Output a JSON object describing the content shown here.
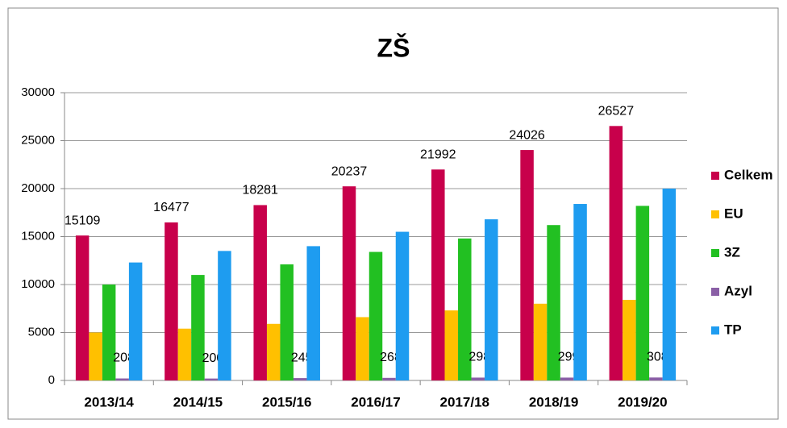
{
  "chart_data": {
    "type": "bar",
    "title": "ZŠ",
    "categories": [
      "2013/14",
      "2014/15",
      "2015/16",
      "2016/17",
      "2017/18",
      "2018/19",
      "2019/20"
    ],
    "series": [
      {
        "name": "Celkem",
        "color": "#c8004b",
        "data_labels": true,
        "values": [
          15109,
          16477,
          18281,
          20237,
          21992,
          24026,
          26527
        ]
      },
      {
        "name": "EU",
        "color": "#ffc000",
        "values": [
          5000,
          5400,
          5900,
          6600,
          7300,
          8000,
          8400
        ]
      },
      {
        "name": "3Z",
        "color": "#22c022",
        "values": [
          10000,
          11000,
          12100,
          13400,
          14800,
          16200,
          18200
        ]
      },
      {
        "name": "Azyl",
        "color": "#8a5fa6",
        "data_labels": true,
        "values": [
          208,
          200,
          245,
          268,
          298,
          299,
          308
        ]
      },
      {
        "name": "TP",
        "color": "#1e9cf0",
        "values": [
          12300,
          13500,
          14000,
          15500,
          16800,
          18400,
          20000
        ]
      }
    ],
    "ylim": [
      0,
      30000
    ],
    "yticks": [
      0,
      5000,
      10000,
      15000,
      20000,
      25000,
      30000
    ],
    "grid": true,
    "legend": "right"
  }
}
